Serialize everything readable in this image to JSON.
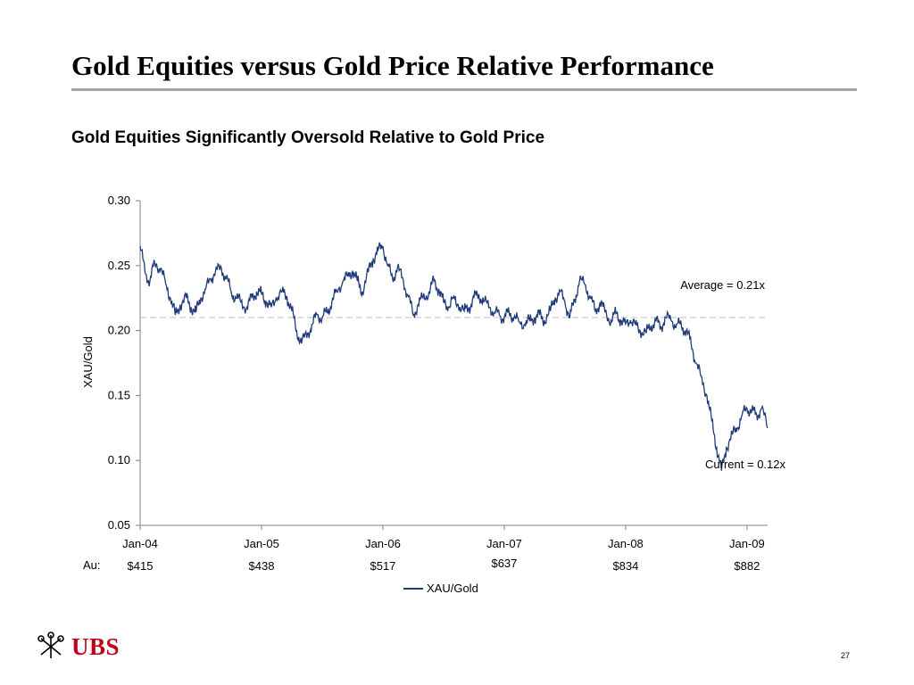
{
  "slide": {
    "title": "Gold Equities versus Gold Price Relative Performance",
    "page_number": "27",
    "logo_text": "UBS"
  },
  "gold_prices": {
    "label": "Au:",
    "values": [
      "$415",
      "$438",
      "$517",
      "$637",
      "$834",
      "$882"
    ]
  },
  "colors": {
    "series": "#1f3b7a",
    "average_line": "#bfbfbf",
    "axis": "#808080",
    "logo": "#c0001a"
  },
  "chart_data": {
    "type": "line",
    "title": "Gold Equities Significantly Oversold Relative to Gold Price",
    "ylabel": "XAU/Gold",
    "xlabel": "",
    "ylim": [
      0.05,
      0.3
    ],
    "yticks": [
      "0.30",
      "0.25",
      "0.20",
      "0.15",
      "0.10",
      "0.05"
    ],
    "xticks": [
      "Jan-04",
      "Jan-05",
      "Jan-06",
      "Jan-07",
      "Jan-08",
      "Jan-09"
    ],
    "legend": {
      "position": "bottom-center",
      "entries": [
        "XAU/Gold"
      ]
    },
    "grid": false,
    "average": {
      "value": 0.21,
      "label": "Average = 0.21x"
    },
    "current": {
      "value": 0.12,
      "label": "Current = 0.12x"
    },
    "series": [
      {
        "name": "XAU/Gold",
        "x": [
          2004.0,
          2004.04,
          2004.08,
          2004.12,
          2004.17,
          2004.21,
          2004.25,
          2004.29,
          2004.33,
          2004.38,
          2004.42,
          2004.46,
          2004.5,
          2004.54,
          2004.58,
          2004.62,
          2004.67,
          2004.71,
          2004.75,
          2004.79,
          2004.83,
          2004.88,
          2004.92,
          2004.96,
          2005.0,
          2005.04,
          2005.08,
          2005.12,
          2005.17,
          2005.21,
          2005.25,
          2005.29,
          2005.33,
          2005.38,
          2005.42,
          2005.46,
          2005.5,
          2005.54,
          2005.58,
          2005.62,
          2005.67,
          2005.71,
          2005.75,
          2005.79,
          2005.83,
          2005.88,
          2005.92,
          2005.96,
          2006.0,
          2006.04,
          2006.08,
          2006.12,
          2006.17,
          2006.21,
          2006.25,
          2006.29,
          2006.33,
          2006.38,
          2006.42,
          2006.46,
          2006.5,
          2006.54,
          2006.58,
          2006.62,
          2006.67,
          2006.71,
          2006.75,
          2006.79,
          2006.83,
          2006.88,
          2006.92,
          2006.96,
          2007.0,
          2007.04,
          2007.08,
          2007.12,
          2007.17,
          2007.21,
          2007.25,
          2007.29,
          2007.33,
          2007.38,
          2007.42,
          2007.46,
          2007.5,
          2007.54,
          2007.58,
          2007.62,
          2007.67,
          2007.71,
          2007.75,
          2007.79,
          2007.83,
          2007.88,
          2007.92,
          2007.96,
          2008.0,
          2008.04,
          2008.08,
          2008.12,
          2008.17,
          2008.21,
          2008.25,
          2008.29,
          2008.33,
          2008.38,
          2008.42,
          2008.46,
          2008.5,
          2008.54,
          2008.58,
          2008.62,
          2008.67,
          2008.71,
          2008.75,
          2008.79,
          2008.83,
          2008.88,
          2008.92,
          2008.96,
          2009.0,
          2009.04,
          2009.08,
          2009.12,
          2009.17
        ],
        "values": [
          0.265,
          0.245,
          0.238,
          0.252,
          0.248,
          0.236,
          0.225,
          0.212,
          0.22,
          0.225,
          0.218,
          0.214,
          0.225,
          0.232,
          0.24,
          0.245,
          0.248,
          0.24,
          0.23,
          0.225,
          0.222,
          0.218,
          0.225,
          0.23,
          0.228,
          0.222,
          0.218,
          0.225,
          0.23,
          0.226,
          0.215,
          0.2,
          0.19,
          0.198,
          0.205,
          0.212,
          0.21,
          0.214,
          0.222,
          0.23,
          0.238,
          0.242,
          0.246,
          0.238,
          0.23,
          0.245,
          0.255,
          0.262,
          0.265,
          0.25,
          0.24,
          0.248,
          0.238,
          0.226,
          0.212,
          0.22,
          0.225,
          0.23,
          0.238,
          0.232,
          0.222,
          0.218,
          0.225,
          0.22,
          0.215,
          0.218,
          0.225,
          0.228,
          0.222,
          0.218,
          0.214,
          0.212,
          0.21,
          0.214,
          0.21,
          0.207,
          0.205,
          0.208,
          0.21,
          0.212,
          0.208,
          0.215,
          0.225,
          0.23,
          0.222,
          0.21,
          0.224,
          0.238,
          0.235,
          0.225,
          0.215,
          0.222,
          0.214,
          0.208,
          0.213,
          0.208,
          0.205,
          0.208,
          0.205,
          0.2,
          0.198,
          0.204,
          0.207,
          0.203,
          0.21,
          0.207,
          0.205,
          0.203,
          0.2,
          0.19,
          0.175,
          0.165,
          0.15,
          0.13,
          0.11,
          0.092,
          0.11,
          0.12,
          0.125,
          0.135,
          0.14,
          0.138,
          0.135,
          0.14,
          0.125
        ]
      }
    ]
  }
}
